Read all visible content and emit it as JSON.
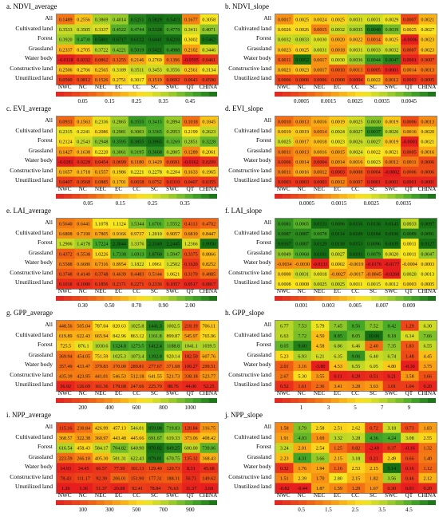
{
  "rows": [
    "All",
    "Cultivated land",
    "Forest",
    "Grassland",
    "Water body",
    "Constructive land",
    "Unutilized land"
  ],
  "cols": [
    "NWC",
    "NC",
    "NEC",
    "EC",
    "CC",
    "SC",
    "SWC",
    "QT",
    "CHINA"
  ],
  "panels": [
    {
      "title": "a. NDVI_average",
      "ticks_top": [
        "0.10",
        "0.20",
        "0.30",
        "0.40",
        "0.50"
      ],
      "ticks_bottom": [
        "0.05",
        "0.15",
        "0.25",
        "0.35",
        "0.45"
      ],
      "vmin": 0.0,
      "vmax": 0.55,
      "values": [
        [
          "0.1489",
          "0.2556",
          "0.3869",
          "0.4014",
          "0.5251",
          "0.5829",
          "0.5413",
          "0.1677",
          "0.3058"
        ],
        [
          "0.3533",
          "0.3505",
          "0.3337",
          "0.4522",
          "0.4744",
          "0.5328",
          "0.4779",
          "0.3411",
          "0.4071"
        ],
        [
          "0.3920",
          "0.4730",
          "0.5801",
          "0.6717",
          "0.6132",
          "0.6441",
          "0.6210",
          "0.3002",
          "0.5462"
        ],
        [
          "0.2337",
          "0.2705",
          "0.3722",
          "0.4221",
          "0.5019",
          "0.5421",
          "0.4988",
          "0.2102",
          "0.3446"
        ],
        [
          "-0.0118",
          "0.0332",
          "0.0862",
          "0.1255",
          "0.2146",
          "0.2769",
          "0.1396",
          "-0.0595",
          "0.0461"
        ],
        [
          "0.2506",
          "0.2766",
          "0.2565",
          "0.3189",
          "0.3511",
          "0.3453",
          "0.3556",
          "0.2561",
          "0.3134"
        ],
        [
          "0.0590",
          "0.0812",
          "0.1526",
          "0.2751",
          "0.3017",
          "0.1519",
          "0.0692",
          "0.0643",
          "0.0590"
        ]
      ]
    },
    {
      "title": "b. NDVI_slope",
      "ticks_top": [
        "0.0010",
        "0.0020",
        "0.0030",
        "0.0040",
        "0.0050"
      ],
      "ticks_bottom": [
        "0.0005",
        "0.0015",
        "0.0025",
        "0.0035",
        "0.0045"
      ],
      "vmin": 0.0,
      "vmax": 0.005,
      "values": [
        [
          "0.0017",
          "0.0025",
          "0.0024",
          "0.0025",
          "0.0031",
          "0.0031",
          "0.0029",
          "0.0007",
          "0.0021"
        ],
        [
          "0.0026",
          "0.0026",
          "0.0015",
          "0.0032",
          "0.0035",
          "0.0048",
          "0.0039",
          "0.0025",
          "0.0027"
        ],
        [
          "0.0032",
          "0.0033",
          "0.0030",
          "0.0020",
          "0.0022",
          "0.0014",
          "0.0025",
          "-0.0006",
          "0.0023"
        ],
        [
          "0.0023",
          "0.0025",
          "0.0031",
          "0.0018",
          "0.0031",
          "0.0033",
          "0.0032",
          "0.0007",
          "0.0023"
        ],
        [
          "0.0011",
          "0.0052",
          "0.0017",
          "0.0030",
          "0.0036",
          "0.0044",
          "0.0047",
          "0.0001",
          "0.0007"
        ],
        [
          "0.0021",
          "0.0023",
          "0.0017",
          "0.0010",
          "0.0013",
          "0.0005",
          "0.0001",
          "0.0014",
          "0.0013"
        ],
        [
          "0.0006",
          "0.0006",
          "0.0006",
          "0.0008",
          "0.0004",
          "0.0022",
          "0.0012",
          "0.0003",
          "0.0005"
        ]
      ]
    },
    {
      "title": "c. EVI_average",
      "ticks_top": [
        "0.10",
        "0.20",
        "0.30"
      ],
      "ticks_bottom": [
        "0.05",
        "0.15",
        "0.25",
        "0.35"
      ],
      "vmin": 0.0,
      "vmax": 0.4,
      "values": [
        [
          "0.0933",
          "0.1563",
          "0.2336",
          "0.2865",
          "0.3555",
          "0.3415",
          "0.2894",
          "0.1018",
          "0.1845"
        ],
        [
          "0.2315",
          "0.2241",
          "0.2086",
          "0.2981",
          "0.3003",
          "0.3365",
          "0.2953",
          "0.2199",
          "0.2623"
        ],
        [
          "0.2124",
          "0.2543",
          "0.2948",
          "0.3595",
          "0.3855",
          "0.3965",
          "0.3269",
          "0.2851",
          "0.3228"
        ],
        [
          "0.1427",
          "0.1638",
          "0.2220",
          "0.3061",
          "0.3195",
          "0.3668",
          "0.2805",
          "0.1289",
          "0.2061"
        ],
        [
          "-0.0281",
          "0.0228",
          "0.0454",
          "0.0699",
          "0.1180",
          "0.1429",
          "0.0691",
          "-0.0162",
          "0.0209"
        ],
        [
          "0.1657",
          "0.1718",
          "0.1557",
          "0.1986",
          "0.2221",
          "0.2278",
          "0.2204",
          "0.1633",
          "0.1965"
        ],
        [
          "0.0407",
          "0.0568",
          "0.0885",
          "0.1701",
          "0.0658",
          "0.0752",
          "0.0310",
          "0.0407",
          "0.0355"
        ]
      ]
    },
    {
      "title": "d. EVI_slope",
      "ticks_top": [
        "0.0010",
        "0.0020",
        "0.0030"
      ],
      "ticks_bottom": [
        "0.0005",
        "0.0015",
        "0.0025",
        "0.0035"
      ],
      "vmin": 0.0,
      "vmax": 0.004,
      "values": [
        [
          "0.0010",
          "0.0013",
          "0.0016",
          "0.0019",
          "0.0025",
          "0.0030",
          "0.0019",
          "0.0006",
          "0.0013"
        ],
        [
          "0.0019",
          "0.0019",
          "0.0014",
          "0.0024",
          "0.0027",
          "0.0037",
          "0.0026",
          "0.0016",
          "0.0020"
        ],
        [
          "0.0025",
          "0.0017",
          "0.0018",
          "0.0023",
          "0.0026",
          "0.0027",
          "0.0019",
          "-0.0001",
          "0.0021"
        ],
        [
          "0.0011",
          "0.0013",
          "0.0016",
          "0.0015",
          "0.0024",
          "0.0022",
          "0.0021",
          "0.0005",
          "0.0016"
        ],
        [
          "0.0006",
          "0.0014",
          "0.0004",
          "0.0014",
          "0.0016",
          "0.0023",
          "0.0012",
          "0.0011",
          "0.0006"
        ],
        [
          "0.0011",
          "0.0016",
          "0.0012",
          "0.0003",
          "0.0008",
          "0.0004",
          "-0.0002",
          "0.0006",
          "0.0006"
        ],
        [
          "0.0003",
          "0.0003",
          "0.0003",
          "0.0012",
          "0.0007",
          "0.0001",
          "0.0001",
          "0.0001",
          "0.0001"
        ]
      ]
    },
    {
      "title": "e. LAI_average",
      "ticks_top": [
        "0.20",
        "0.40",
        "0.60",
        "1.00",
        "1.60"
      ],
      "ticks_bottom": [
        "0.30",
        "0.50",
        "0.70",
        "0.90",
        "2.00"
      ],
      "vmin": 0.0,
      "vmax": 2.0,
      "values": [
        [
          "0.5640",
          "0.6441",
          "1.1078",
          "1.1124",
          "1.5344",
          "1.6701",
          "1.5552",
          "0.4113",
          "0.4702"
        ],
        [
          "0.6808",
          "0.7190",
          "0.7805",
          "0.9166",
          "0.9737",
          "1.2010",
          "0.9057",
          "0.6819",
          "0.8447"
        ],
        [
          "1.2906",
          "1.4178",
          "1.7224",
          "2.3044",
          "1.3376",
          "2.3349",
          "2.2445",
          "1.2366",
          "1.9950"
        ],
        [
          "0.4372",
          "0.5538",
          "1.0226",
          "1.7338",
          "1.6913",
          "1.8760",
          "1.5947",
          "0.3375",
          "0.8866"
        ],
        [
          "0.5588",
          "0.6680",
          "0.7316",
          "0.8954",
          "1.1822",
          "1.0961",
          "1.2502",
          "0.1620",
          "0.8252"
        ],
        [
          "0.3748",
          "0.4140",
          "0.3748",
          "0.4639",
          "0.4483",
          "0.5144",
          "1.0621",
          "0.3170",
          "0.4885"
        ],
        [
          "0.1018",
          "0.1080",
          "0.1856",
          "0.2171",
          "0.2271",
          "0.2336",
          "0.1057",
          "0.0517",
          "0.0817"
        ]
      ]
    },
    {
      "title": "f. LAI_slope",
      "ticks_top": [
        "0.000",
        "0.002",
        "0.004",
        "0.006",
        "0.008",
        "0.010"
      ],
      "ticks_bottom": [
        "0.001",
        "0.003",
        "0.005",
        "0.007",
        "0.009"
      ],
      "vmin": -0.01,
      "vmax": 0.01,
      "values": [
        [
          "0.0081",
          "0.0065",
          "0.0133",
          "0.0096",
          "0.0156",
          "0.0136",
          "0.0143",
          "0.0033",
          "0.0097"
        ],
        [
          "0.0087",
          "0.0087",
          "0.0078",
          "0.0114",
          "0.0109",
          "0.0184",
          "0.0106",
          "0.0089",
          "0.0091"
        ],
        [
          "0.0167",
          "0.0087",
          "0.0129",
          "0.0118",
          "0.0153",
          "0.0096",
          "0.0109",
          "0.0011",
          "0.0127"
        ],
        [
          "0.0049",
          "0.0068",
          "0.0101",
          "0.0027",
          "0.0101",
          "0.0079",
          "0.0020",
          "0.0011",
          "0.0047"
        ],
        [
          "-0.0034",
          "-0.0030",
          "-0.0133",
          "0.0002",
          "-0.0019",
          "-0.0176",
          "-0.0177",
          "-0.0004",
          "0.0003"
        ],
        [
          "0.0000",
          "0.0031",
          "0.0018",
          "-0.0027",
          "-0.0017",
          "-0.0045",
          "-0.0268",
          "0.0020",
          "0.0013"
        ],
        [
          "0.0008",
          "0.0008",
          "0.0025",
          "0.0025",
          "0.0011",
          "0.0015",
          "0.0012",
          "0.0003",
          "0.0005"
        ]
      ]
    },
    {
      "title": "g. GPP_average",
      "ticks_top": [
        "100",
        "300",
        "500",
        "700",
        "900",
        "1500"
      ],
      "ticks_bottom": [
        "200",
        "400",
        "600",
        "800",
        "1000"
      ],
      "vmin": 0.0,
      "vmax": 1500.0,
      "values": [
        [
          "448.56",
          "505.04",
          "787.04",
          "820.63",
          "1025.8",
          "1441.3",
          "1002.5",
          "218.19",
          "706.11"
        ],
        [
          "619.89",
          "622.43",
          "665.94",
          "842.96",
          "863.12",
          "1161.8",
          "899.87",
          "545.97",
          "765.96"
        ],
        [
          "725.5",
          "876.1",
          "1030.6",
          "1324.8",
          "1273.5",
          "1412.4",
          "1188.8",
          "1041.1",
          "1039.5"
        ],
        [
          "369.94",
          "454.05",
          "751.59",
          "1025.3",
          "1073.4",
          "1392.8",
          "920.14",
          "182.50",
          "607.76"
        ],
        [
          "357.49",
          "433.47",
          "379.83",
          "370.00",
          "289.81",
          "277.67",
          "371.68",
          "100.27",
          "299.51"
        ],
        [
          "435.39",
          "423.95",
          "441.01",
          "546.53",
          "512.18",
          "641.55",
          "521.73",
          "338.18",
          "523.77"
        ],
        [
          "36.92",
          "126.69",
          "161.36",
          "179.68",
          "247.66",
          "225.70",
          "88.76",
          "44.06",
          "52.25"
        ]
      ]
    },
    {
      "title": "h. GPP_slope",
      "ticks_top": [
        "0",
        "2",
        "4",
        "6",
        "8",
        "10"
      ],
      "ticks_bottom": [
        "1",
        "3",
        "5",
        "7",
        "9"
      ],
      "vmin": 0.0,
      "vmax": 10.0,
      "values": [
        [
          "6.77",
          "7.53",
          "5.79",
          "7.45",
          "8.56",
          "7.52",
          "8.42",
          "1.29",
          "6.30"
        ],
        [
          "6.63",
          "7.72",
          "4.50",
          "8.85",
          "8.05",
          "10.06",
          "8.18",
          "6.14",
          "7.66"
        ],
        [
          "8.05",
          "9.60",
          "4.58",
          "6.86",
          "6.46",
          "2.40",
          "7.35",
          "1.83",
          "6.55"
        ],
        [
          "5.23",
          "6.93",
          "6.21",
          "6.35",
          "9.06",
          "6.40",
          "6.74",
          "1.48",
          "4.45"
        ],
        [
          "2.01",
          "3.16",
          "-3.80",
          "4.53",
          "6.55",
          "6.05",
          "4.80",
          "-0.30",
          "3.75"
        ],
        [
          "2.67",
          "5.30",
          "3.55",
          "0.11",
          "0.29",
          "0.51",
          "0.21",
          "3.58",
          "1.66"
        ],
        [
          "0.52",
          "1.61",
          "2.36",
          "3.41",
          "3.28",
          "3.63",
          "1.01",
          "1.04",
          "0.20"
        ]
      ]
    },
    {
      "title": "i. NPP_average",
      "ticks_top": [
        "50",
        "200",
        "400",
        "600",
        "800"
      ],
      "ticks_bottom": [
        "100",
        "300",
        "500",
        "700",
        "900"
      ],
      "vmin": 0.0,
      "vmax": 900.0,
      "values": [
        [
          "115.16",
          "230.84",
          "426.99",
          "457.13",
          "546.01",
          "859.08",
          "719.83",
          "120.84",
          "316.75"
        ],
        [
          "368.57",
          "322.38",
          "360.97",
          "443.48",
          "445.66",
          "691.67",
          "619.33",
          "373.06",
          "408.42"
        ],
        [
          "616.54",
          "458.43",
          "584.17",
          "704.82",
          "640.90",
          "970.82",
          "849.25",
          "600.00",
          "739.06"
        ],
        [
          "223.59",
          "266.10",
          "405.30",
          "581.31",
          "622.43",
          "879.81",
          "670.75",
          "135.32",
          "368.43"
        ],
        [
          "14.93",
          "34.45",
          "66.57",
          "77.50",
          "101.13",
          "129.40",
          "120.73",
          "8.31",
          "45.68"
        ],
        [
          "78.43",
          "111.17",
          "92.39",
          "206.01",
          "151.90",
          "177.31",
          "188.31",
          "50.71",
          "149.62"
        ],
        [
          "1.26",
          "1.36",
          "51.37",
          "20.08",
          "92.41",
          "78.84",
          "76.63",
          "11.37",
          "2.69"
        ]
      ]
    },
    {
      "title": "j. NPP_slope",
      "ticks_top": [
        "0",
        "1",
        "2",
        "3",
        "4",
        "5.0"
      ],
      "ticks_bottom": [
        "0.5",
        "1.5",
        "2.5",
        "3.5",
        "4.5"
      ],
      "vmin": 0.0,
      "vmax": 5.0,
      "values": [
        [
          "1.58",
          "3.79",
          "2.58",
          "2.51",
          "2.62",
          "0.72",
          "3.18",
          "0.73",
          "1.83"
        ],
        [
          "1.91",
          "4.03",
          "1.69",
          "3.32",
          "3.28",
          "4.36",
          "4.24",
          "3.08",
          "2.55"
        ],
        [
          "3.24",
          "2.01",
          "2.54",
          "1.25",
          "0.82",
          "-2.40",
          "0.37",
          "-0.16",
          "1.32"
        ],
        [
          "2.23",
          "4.31",
          "3.66",
          "2.15",
          "3.18",
          "0.21",
          "2.49",
          "0.66",
          "1.40"
        ],
        [
          "0.32",
          "1.76",
          "1.94",
          "1.16",
          "2.53",
          "2.15",
          "5.14",
          "0.16",
          "1.12"
        ],
        [
          "1.51",
          "2.39",
          "1.70",
          "2.80",
          "2.15",
          "1.82",
          "3.56",
          "0.46",
          "2.12"
        ],
        [
          "-0.82",
          "-0.44",
          "1.87",
          "1.59",
          "1.29",
          "1.67",
          "0.30",
          "0.01",
          "0.20"
        ]
      ]
    }
  ]
}
